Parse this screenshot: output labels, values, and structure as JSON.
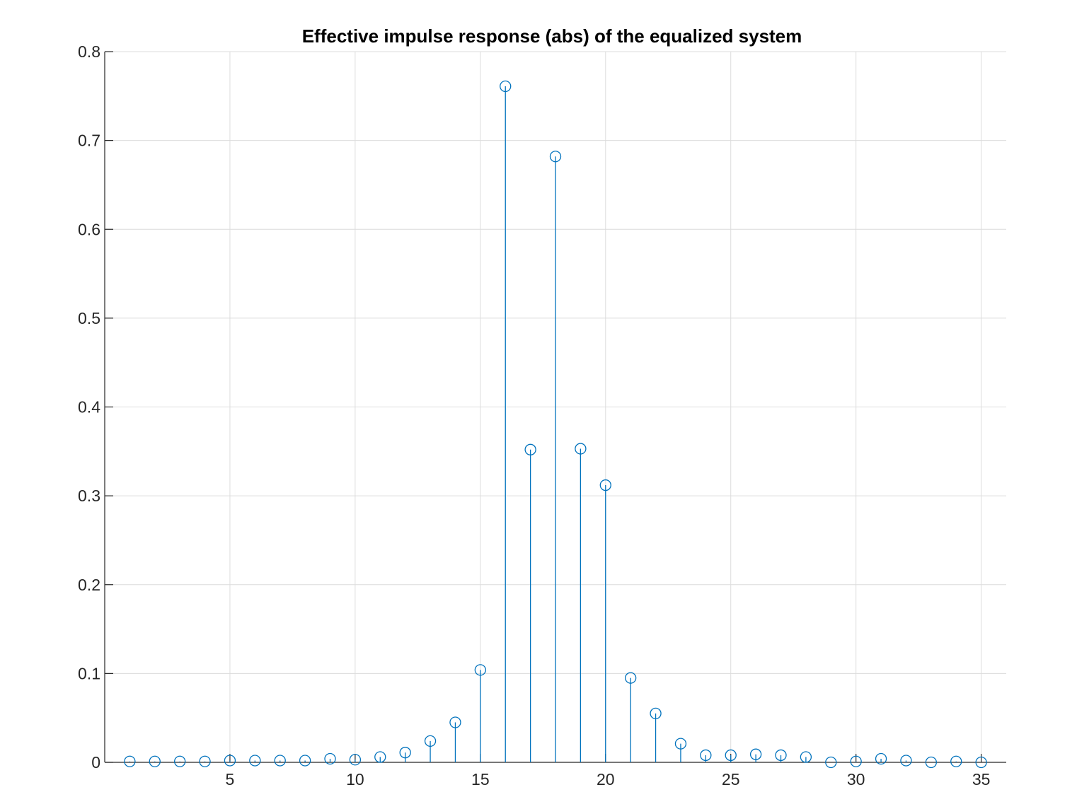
{
  "chart_data": {
    "type": "stem",
    "title": "Effective impulse response (abs) of the equalized system",
    "xlabel": "",
    "ylabel": "",
    "xlim": [
      0,
      36
    ],
    "ylim": [
      0,
      0.8
    ],
    "xticks": [
      5,
      10,
      15,
      20,
      25,
      30,
      35
    ],
    "xtick_labels": [
      "5",
      "10",
      "15",
      "20",
      "25",
      "30",
      "35"
    ],
    "yticks": [
      0,
      0.1,
      0.2,
      0.3,
      0.4,
      0.5,
      0.6,
      0.7,
      0.8
    ],
    "ytick_labels": [
      "0",
      "0.1",
      "0.2",
      "0.3",
      "0.4",
      "0.5",
      "0.6",
      "0.7",
      "0.8"
    ],
    "grid": true,
    "series": [
      {
        "x": [
          1,
          2,
          3,
          4,
          5,
          6,
          7,
          8,
          9,
          10,
          11,
          12,
          13,
          14,
          15,
          16,
          17,
          18,
          19,
          20,
          21,
          22,
          23,
          24,
          25,
          26,
          27,
          28,
          29,
          30,
          31,
          32,
          33,
          34,
          35
        ],
        "values": [
          0.001,
          0.001,
          0.001,
          0.001,
          0.002,
          0.002,
          0.002,
          0.002,
          0.004,
          0.003,
          0.006,
          0.011,
          0.024,
          0.045,
          0.104,
          0.761,
          0.352,
          0.682,
          0.353,
          0.312,
          0.095,
          0.055,
          0.021,
          0.008,
          0.008,
          0.009,
          0.008,
          0.006,
          0.0,
          0.001,
          0.004,
          0.002,
          0.0,
          0.001,
          0.0
        ]
      }
    ],
    "colors": {
      "stem": "#0072BD",
      "grid": "#DCDCDC",
      "axis": "#262626",
      "background": "#FFFFFF"
    }
  }
}
